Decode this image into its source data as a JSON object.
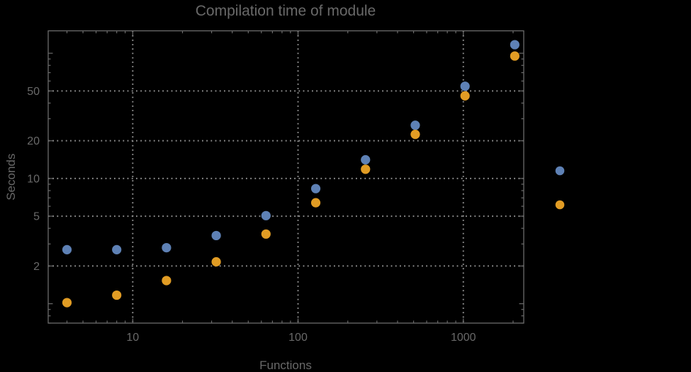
{
  "title": "Compilation time of module",
  "axes": {
    "x_label": "Functions",
    "y_label": "Seconds",
    "x_tick_labels": [
      "10",
      "100",
      "1000"
    ],
    "y_tick_labels": [
      "2",
      "5",
      "10",
      "20",
      "50"
    ]
  },
  "colors": {
    "background": "#000000",
    "frame": "#6b6b6b",
    "grid": "#8f8f8f",
    "text": "#696969",
    "series_blue": "#5e81b5",
    "series_orange": "#e19c24"
  },
  "legend": {
    "markers": [
      {
        "name": "series-blue-marker",
        "color": "#5e81b5"
      },
      {
        "name": "series-orange-marker",
        "color": "#e19c24"
      }
    ],
    "labels_visible": false
  },
  "chart_data": {
    "type": "scatter",
    "title": "Compilation time of module",
    "xlabel": "Functions",
    "ylabel": "Seconds",
    "x_scale": "log",
    "y_scale": "log",
    "xlim": [
      3.08,
      2320
    ],
    "ylim": [
      0.7,
      151
    ],
    "x_ticks": [
      10,
      100,
      1000
    ],
    "y_ticks": [
      2,
      5,
      10,
      20,
      50
    ],
    "grid": "dotted gridlines at labeled ticks, framed plot, ticks on all four edges",
    "legend_position": "outside right of frame, markers only (no visible label text)",
    "x": [
      4,
      8,
      16,
      32,
      64,
      128,
      256,
      512,
      1024,
      2048
    ],
    "series": [
      {
        "name": "blue",
        "color": "#5e81b5",
        "values": [
          2.7,
          2.7,
          2.8,
          3.5,
          5.05,
          8.3,
          14.1,
          26.6,
          54.5,
          117
        ]
      },
      {
        "name": "orange",
        "color": "#e19c24",
        "values": [
          1.02,
          1.17,
          1.53,
          2.16,
          3.6,
          6.4,
          11.85,
          22.5,
          45.7,
          95
        ]
      }
    ]
  }
}
